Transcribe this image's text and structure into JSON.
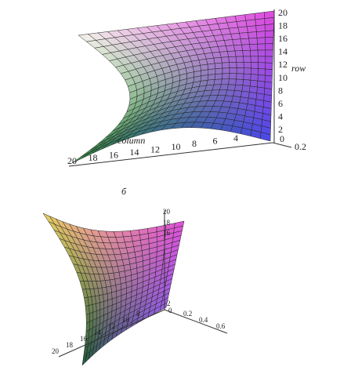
{
  "figure_a": {
    "row_label": "row",
    "column_label": "column",
    "row_ticks": [
      20,
      18,
      16,
      14,
      12,
      10,
      8,
      6,
      4,
      2
    ],
    "column_ticks": [
      20,
      18,
      16,
      14,
      12,
      10,
      8,
      6,
      4
    ],
    "z_ticks": [
      0,
      0.2
    ]
  },
  "caption": "б",
  "figure_b": {
    "row_ticks": [
      20,
      18,
      16,
      2
    ],
    "column_ticks": [
      20,
      18,
      16,
      14,
      12,
      10,
      8
    ],
    "z_ticks": [
      0,
      0.2,
      0.4,
      0.6
    ]
  }
}
